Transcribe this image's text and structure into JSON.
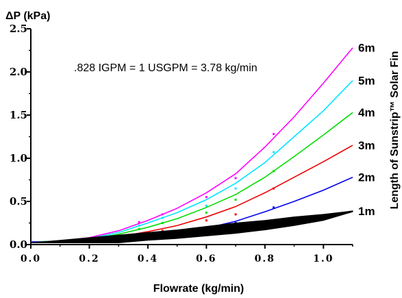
{
  "chart_data": {
    "type": "line",
    "ylabel": "ΔP (kPa)",
    "xlabel": "Flowrate (kg/min)",
    "right_label": "Length of Sunstrip™ Solar Fin",
    "annotation": ".828 IGPM = 1 USGPM = 3.78 kg/min",
    "xlim": [
      0,
      1.1
    ],
    "ylim": [
      0,
      2.5
    ],
    "x_ticks": [
      "0.0",
      "0.2",
      "0.4",
      "0.6",
      "0.8",
      "1.0"
    ],
    "y_ticks": [
      "0.0",
      "0.5",
      "1.0",
      "1.5",
      "2.0",
      "2.5"
    ],
    "series": [
      {
        "name": "6m",
        "color": "#ff00ff",
        "x": [
          0,
          0.1,
          0.2,
          0.3,
          0.4,
          0.5,
          0.6,
          0.7,
          0.8,
          0.9,
          1.0,
          1.1
        ],
        "y": [
          0.03,
          0.04,
          0.08,
          0.16,
          0.28,
          0.42,
          0.6,
          0.82,
          1.13,
          1.48,
          1.87,
          2.28
        ],
        "points_x": [
          0.37,
          0.45,
          0.6,
          0.7,
          0.83
        ],
        "points_y": [
          0.26,
          0.35,
          0.55,
          0.77,
          1.28
        ]
      },
      {
        "name": "5m",
        "color": "#00e5ff",
        "x": [
          0,
          0.1,
          0.2,
          0.3,
          0.4,
          0.5,
          0.6,
          0.7,
          0.8,
          0.9,
          1.0,
          1.1
        ],
        "y": [
          0.03,
          0.04,
          0.07,
          0.14,
          0.25,
          0.37,
          0.52,
          0.71,
          0.95,
          1.25,
          1.55,
          1.9
        ],
        "points_x": [
          0.37,
          0.45,
          0.6,
          0.7,
          0.83
        ],
        "points_y": [
          0.22,
          0.31,
          0.45,
          0.65,
          1.07
        ]
      },
      {
        "name": "4m",
        "color": "#00dd00",
        "x": [
          0,
          0.1,
          0.2,
          0.3,
          0.4,
          0.5,
          0.6,
          0.7,
          0.8,
          0.9,
          1.0,
          1.1
        ],
        "y": [
          0.03,
          0.04,
          0.06,
          0.12,
          0.2,
          0.3,
          0.43,
          0.58,
          0.78,
          1.02,
          1.27,
          1.53
        ],
        "points_x": [
          0.37,
          0.45,
          0.6,
          0.7,
          0.83
        ],
        "points_y": [
          0.18,
          0.25,
          0.37,
          0.52,
          0.85
        ]
      },
      {
        "name": "3m",
        "color": "#ee0000",
        "x": [
          0,
          0.1,
          0.2,
          0.3,
          0.4,
          0.5,
          0.6,
          0.7,
          0.8,
          0.9,
          1.0,
          1.1
        ],
        "y": [
          0.03,
          0.03,
          0.05,
          0.09,
          0.15,
          0.22,
          0.32,
          0.44,
          0.6,
          0.78,
          0.96,
          1.15
        ],
        "points_x": [
          0.37,
          0.45,
          0.6,
          0.7,
          0.83
        ],
        "points_y": [
          0.12,
          0.16,
          0.28,
          0.35,
          0.65
        ]
      },
      {
        "name": "2m",
        "color": "#0000ee",
        "x": [
          0,
          0.1,
          0.2,
          0.3,
          0.4,
          0.5,
          0.6,
          0.7,
          0.8,
          0.9,
          1.0,
          1.1
        ],
        "y": [
          0.03,
          0.03,
          0.04,
          0.07,
          0.1,
          0.14,
          0.19,
          0.27,
          0.38,
          0.5,
          0.63,
          0.78
        ],
        "points_x": [
          0.37,
          0.45,
          0.6,
          0.7,
          0.83
        ],
        "points_y": [
          0.08,
          0.1,
          0.18,
          0.25,
          0.43
        ]
      },
      {
        "name": "1m",
        "color": "#000000",
        "band_x": [
          0,
          0.1,
          0.2,
          0.3,
          0.4,
          0.5,
          0.6,
          0.7,
          0.8,
          0.9,
          1.0,
          1.1
        ],
        "band_upper": [
          0.02,
          0.05,
          0.08,
          0.11,
          0.14,
          0.17,
          0.21,
          0.25,
          0.28,
          0.32,
          0.35,
          0.39
        ],
        "band_lower": [
          0.02,
          0.02,
          0.02,
          0.02,
          0.05,
          0.07,
          0.1,
          0.13,
          0.17,
          0.22,
          0.28,
          0.38
        ]
      }
    ]
  }
}
